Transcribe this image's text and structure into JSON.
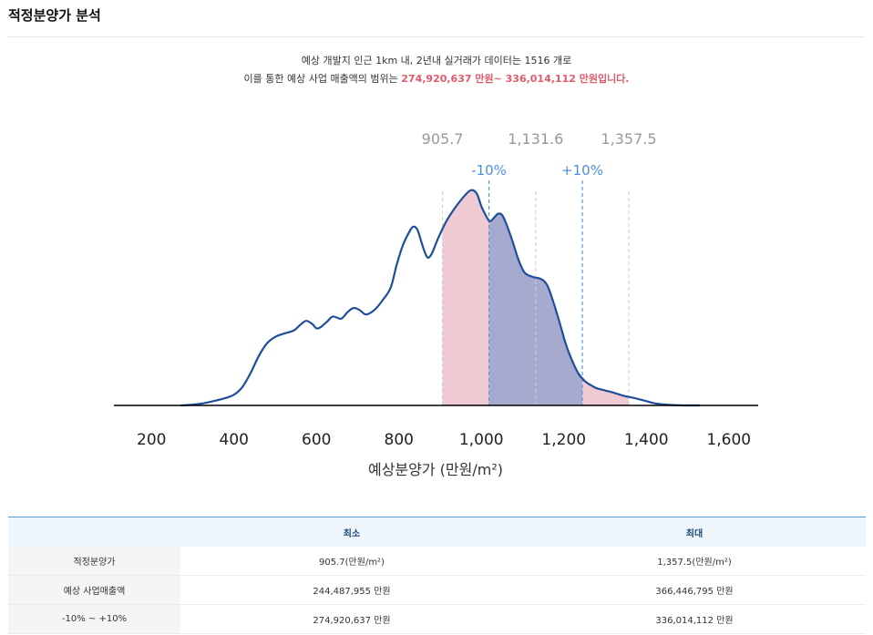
{
  "page": {
    "title": "적정분양가 분석"
  },
  "summary": {
    "line1": "예상 개발지 인근 1km 내, 2년내 실거래가 데이터는 1516 개로",
    "line2_prefix": "이를 통한 예상 사업 매출액의 범위는 ",
    "line2_highlight": "274,920,637 만원~ 336,014,112 만원입니다."
  },
  "chart_data": {
    "type": "area",
    "xlabel": "예상분양가 (만원/m²)",
    "xlim": [
      100,
      1700
    ],
    "x_ticks": [
      200,
      400,
      600,
      800,
      1000,
      1200,
      1400,
      1600
    ],
    "x_tick_labels": [
      "200",
      "400",
      "600",
      "800",
      "1,000",
      "1,200",
      "1,400",
      "1,600"
    ],
    "density_x": [
      270,
      290,
      320,
      350,
      380,
      400,
      420,
      440,
      460,
      480,
      500,
      520,
      545,
      560,
      575,
      590,
      600,
      610,
      625,
      640,
      660,
      675,
      690,
      705,
      720,
      740,
      760,
      780,
      795,
      810,
      825,
      835,
      845,
      855,
      862,
      870,
      880,
      895,
      915,
      935,
      955,
      970,
      980,
      990,
      1000,
      1010,
      1020,
      1030,
      1040,
      1050,
      1060,
      1075,
      1090,
      1105,
      1125,
      1145,
      1160,
      1175,
      1190,
      1205,
      1220,
      1235,
      1250,
      1265,
      1280,
      1300,
      1320,
      1345,
      1370,
      1400,
      1420,
      1440,
      1460,
      1480,
      1500,
      1530
    ],
    "density_y": [
      0.0,
      0.2,
      0.8,
      2.0,
      3.5,
      5.0,
      8.5,
      15.0,
      23.0,
      29.0,
      32.0,
      33.5,
      35.0,
      37.5,
      39.5,
      38.0,
      36.0,
      36.5,
      39.0,
      41.5,
      40.5,
      43.5,
      45.5,
      44.5,
      42.5,
      44.5,
      49.0,
      55.0,
      66.0,
      75.0,
      81.0,
      83.5,
      82.0,
      76.0,
      72.0,
      69.0,
      71.0,
      78.0,
      86.0,
      92.0,
      97.0,
      100.0,
      100.5,
      98.5,
      93.0,
      89.0,
      86.0,
      87.5,
      89.5,
      89.0,
      85.0,
      77.0,
      68.0,
      62.0,
      60.0,
      59.0,
      56.0,
      48.0,
      38.5,
      28.5,
      21.0,
      15.0,
      11.5,
      9.5,
      8.0,
      7.0,
      6.0,
      4.5,
      3.5,
      2.0,
      1.0,
      0.5,
      0.2,
      0.05,
      0.0,
      0.0
    ],
    "ranges": {
      "min": {
        "value": 905.7,
        "label": "905.7"
      },
      "mid": {
        "value": 1131.6,
        "label": "1,131.6"
      },
      "max": {
        "value": 1357.5,
        "label": "1,357.5"
      },
      "minus10": {
        "value": 1018.4,
        "label": "-10%"
      },
      "plus10": {
        "value": 1244.8,
        "label": "+10%"
      }
    },
    "colors": {
      "line": "#1f4e9a",
      "outer_fill": "#e8b4bf",
      "inner_fill": "#9aa4cf",
      "dashed_gray": "#c8c8d8",
      "dashed_blue": "#5b9bd5",
      "range_label": "#999999",
      "pct_label": "#4a90e2",
      "axis": "#000000"
    }
  },
  "table": {
    "headers": [
      "",
      "최소",
      "최대"
    ],
    "rows": [
      {
        "label": "적정분양가",
        "min": "905.7(만원/m²)",
        "max": "1,357.5(만원/m²)"
      },
      {
        "label": "예상 사업매출액",
        "min": "244,487,955 만원",
        "max": "366,446,795 만원"
      },
      {
        "label": "-10% ~ +10%",
        "min": "274,920,637 만원",
        "max": "336,014,112 만원"
      }
    ]
  }
}
